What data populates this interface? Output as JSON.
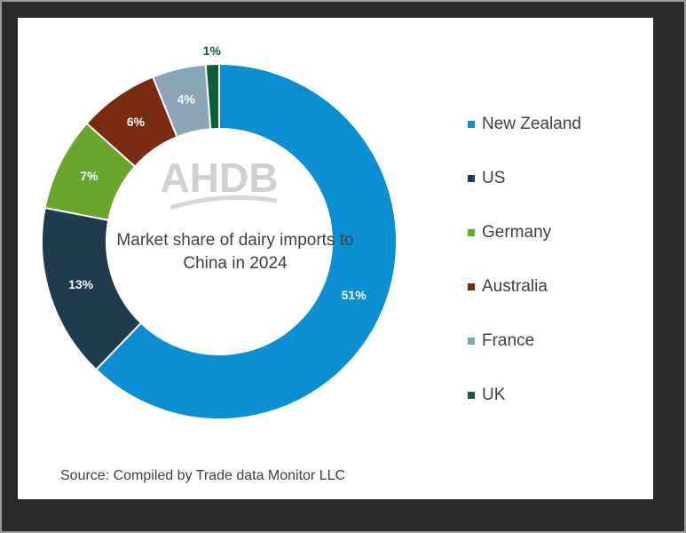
{
  "chart_data": {
    "type": "donut",
    "title": "Market share of dairy imports to China in 2024",
    "watermark": "AHDB",
    "source": "Source: Compiled by Trade data Monitor LLC",
    "categories": [
      "New Zealand",
      "US",
      "Germany",
      "Australia",
      "France",
      "UK"
    ],
    "values": [
      51,
      13,
      7,
      6,
      4,
      1
    ],
    "value_labels": [
      "51%",
      "13%",
      "7%",
      "6%",
      "4%",
      "1%"
    ],
    "colors": [
      "#0b8fd3",
      "#1f3b4d",
      "#6aa62e",
      "#7a2a0e",
      "#8aa5b5",
      "#0f5e3a"
    ],
    "legend": "right"
  }
}
